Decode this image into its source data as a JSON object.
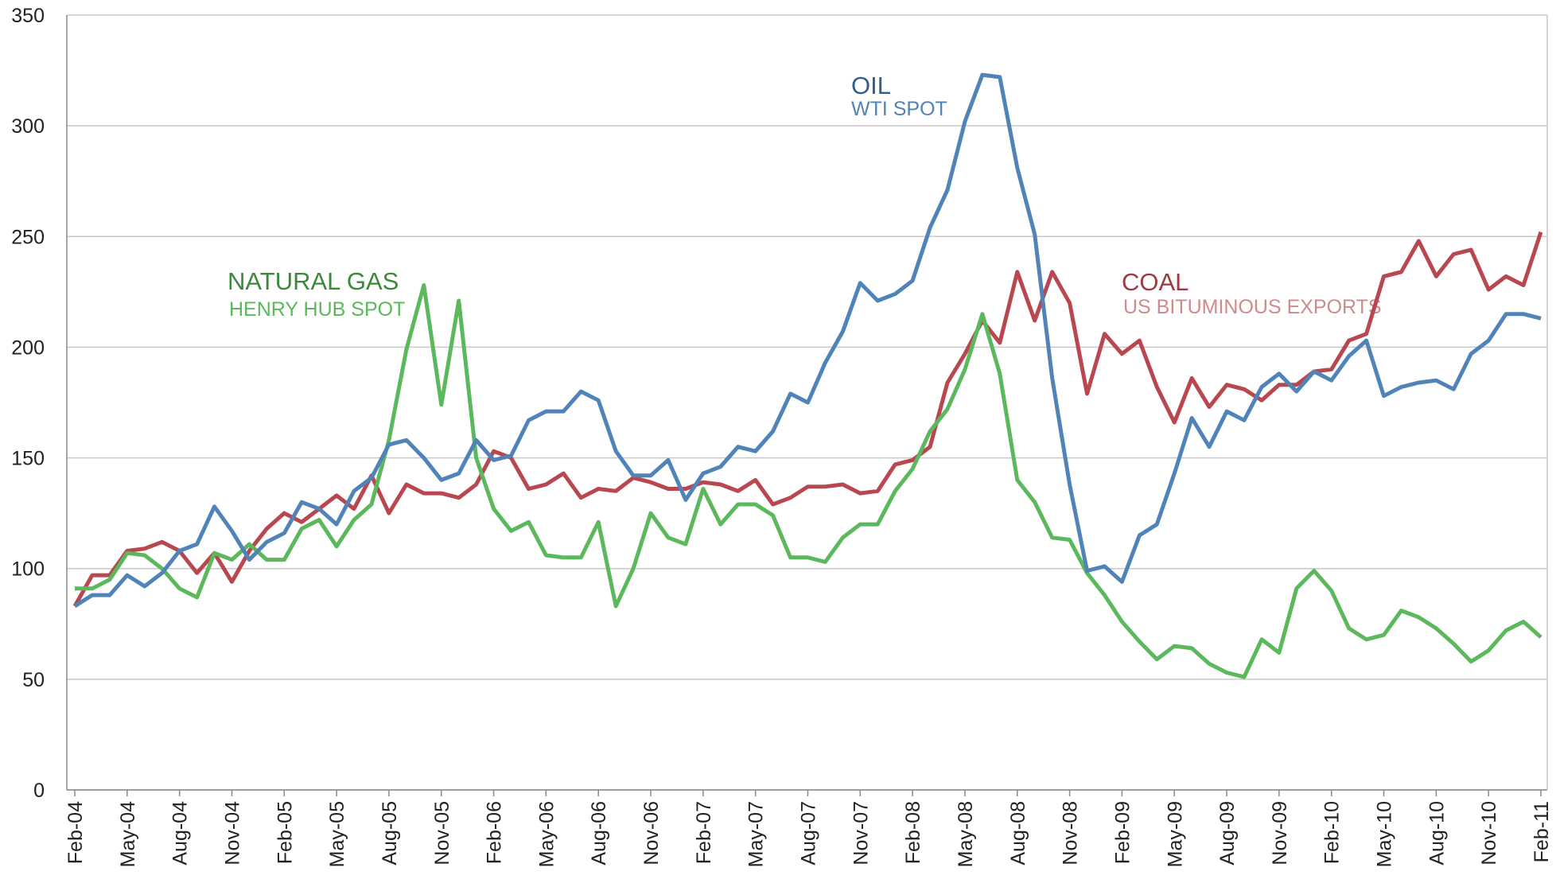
{
  "chart_data": {
    "type": "line",
    "categories": [
      "Feb-04",
      null,
      null,
      "May-04",
      null,
      null,
      "Aug-04",
      null,
      null,
      "Nov-04",
      null,
      null,
      "Feb-05",
      null,
      null,
      "May-05",
      null,
      null,
      "Aug-05",
      null,
      null,
      "Nov-05",
      null,
      null,
      "Feb-06",
      null,
      null,
      "May-06",
      null,
      null,
      "Aug-06",
      null,
      null,
      "Nov-06",
      null,
      null,
      "Feb-07",
      null,
      null,
      "May-07",
      null,
      null,
      "Aug-07",
      null,
      null,
      "Nov-07",
      null,
      null,
      "Feb-08",
      null,
      null,
      "May-08",
      null,
      null,
      "Aug-08",
      null,
      null,
      "Nov-08",
      null,
      null,
      "Feb-09",
      null,
      null,
      "May-09",
      null,
      null,
      "Aug-09",
      null,
      null,
      "Nov-09",
      null,
      null,
      "Feb-10",
      null,
      null,
      "May-10",
      null,
      null,
      "Aug-10",
      null,
      null,
      "Nov-10",
      null,
      null,
      "Feb-11"
    ],
    "series": [
      {
        "name": "OIL",
        "subname": "WTI SPOT",
        "color": "#5083b8",
        "values": [
          83,
          88,
          88,
          97,
          92,
          98,
          108,
          111,
          128,
          117,
          104,
          112,
          116,
          130,
          127,
          120,
          135,
          141,
          156,
          158,
          150,
          140,
          143,
          158,
          149,
          151,
          167,
          171,
          171,
          180,
          176,
          153,
          142,
          142,
          149,
          131,
          143,
          146,
          155,
          153,
          162,
          179,
          175,
          193,
          207,
          229,
          221,
          224,
          230,
          254,
          271,
          302,
          323,
          322,
          281,
          251,
          186,
          138,
          99,
          101,
          94,
          115,
          120,
          143,
          168,
          155,
          171,
          167,
          182,
          188,
          180,
          189,
          185,
          196,
          203,
          178,
          182,
          184,
          185,
          181,
          197,
          203,
          215,
          215,
          213
        ]
      },
      {
        "name": "NATURAL GAS",
        "subname": "HENRY HUB SPOT",
        "color": "#5cb85c",
        "values": [
          91,
          91,
          95,
          107,
          106,
          100,
          91,
          87,
          107,
          104,
          111,
          104,
          104,
          118,
          122,
          110,
          122,
          129,
          158,
          199,
          228,
          174,
          221,
          150,
          127,
          117,
          121,
          106,
          105,
          105,
          121,
          83,
          100,
          125,
          114,
          111,
          136,
          120,
          129,
          129,
          124,
          105,
          105,
          103,
          114,
          120,
          120,
          135,
          145,
          162,
          172,
          190,
          215,
          188,
          140,
          130,
          114,
          113,
          98,
          88,
          76,
          67,
          59,
          65,
          64,
          57,
          53,
          51,
          68,
          62,
          91,
          99,
          90,
          73,
          68,
          70,
          81,
          78,
          73,
          66,
          58,
          63,
          72,
          76,
          69
        ]
      },
      {
        "name": "COAL",
        "subname": "US BITUMINOUS EXPORTS",
        "color": "#b8474f",
        "values": [
          83,
          97,
          97,
          108,
          109,
          112,
          108,
          98,
          107,
          94,
          108,
          118,
          125,
          121,
          127,
          133,
          127,
          142,
          125,
          138,
          134,
          134,
          132,
          138,
          153,
          150,
          136,
          138,
          143,
          132,
          136,
          135,
          141,
          139,
          136,
          136,
          139,
          138,
          135,
          140,
          129,
          132,
          137,
          137,
          138,
          134,
          135,
          147,
          149,
          155,
          184,
          197,
          212,
          202,
          234,
          212,
          234,
          220,
          179,
          206,
          197,
          203,
          182,
          166,
          186,
          173,
          183,
          181,
          176,
          183,
          183,
          189,
          190,
          203,
          206,
          232,
          234,
          248,
          232,
          242,
          244,
          226,
          232,
          228,
          252
        ]
      }
    ],
    "ylim": [
      0,
      350
    ],
    "yticks": [
      0,
      50,
      100,
      150,
      200,
      250,
      300,
      350
    ],
    "grid": true
  }
}
